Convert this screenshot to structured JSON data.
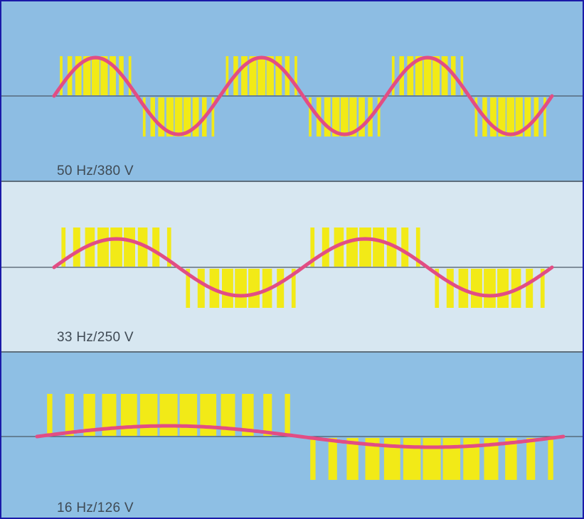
{
  "colors": {
    "carrier_bar": "#f2ea17",
    "sine_wave": "#e24d84",
    "axis_line": "#4c5a68",
    "panel_background": [
      "#8dbde3",
      "#d7e7f1",
      "#8ebfe4"
    ]
  },
  "panels": [
    {
      "label": "50 Hz/380 V",
      "frequency_hz": 50,
      "voltage_v": 380,
      "relative_amplitude": 1.0,
      "cycles_shown": 3
    },
    {
      "label": "33 Hz/250 V",
      "frequency_hz": 33,
      "voltage_v": 250,
      "relative_amplitude": 0.66,
      "cycles_shown": 2
    },
    {
      "label": "16 Hz/126 V",
      "frequency_hz": 16,
      "voltage_v": 126,
      "relative_amplitude": 0.33,
      "cycles_shown": 1
    }
  ]
}
